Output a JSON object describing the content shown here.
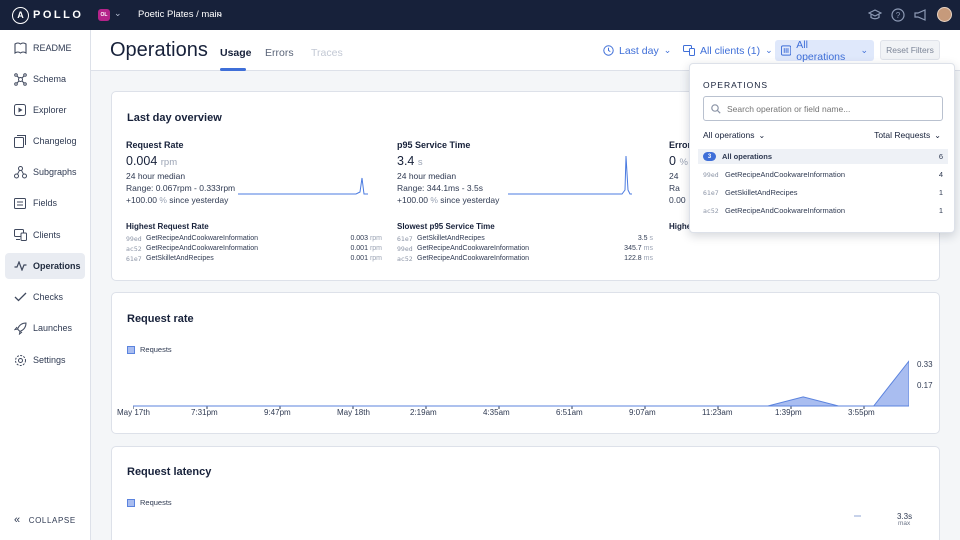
{
  "topbar": {
    "logo_text": "POLLO",
    "logo_letter": "A",
    "org_initials": "OL",
    "graph_name": "Poetic Plates / main",
    "icons": [
      "graduation-icon",
      "help-icon",
      "megaphone-icon",
      "user-avatar"
    ]
  },
  "sidebar": {
    "items": [
      {
        "label": "README",
        "icon": "book-icon"
      },
      {
        "label": "Schema",
        "icon": "schema-icon"
      },
      {
        "label": "Explorer",
        "icon": "play-icon"
      },
      {
        "label": "Changelog",
        "icon": "changelog-icon"
      },
      {
        "label": "Subgraphs",
        "icon": "subgraphs-icon"
      },
      {
        "label": "Fields",
        "icon": "fields-icon"
      },
      {
        "label": "Clients",
        "icon": "clients-icon"
      },
      {
        "label": "Operations",
        "icon": "pulse-icon",
        "active": true
      },
      {
        "label": "Checks",
        "icon": "check-icon"
      },
      {
        "label": "Launches",
        "icon": "rocket-icon"
      },
      {
        "label": "Settings",
        "icon": "gear-icon"
      }
    ],
    "collapse_label": "COLLAPSE"
  },
  "header": {
    "title": "Operations",
    "tabs": [
      {
        "label": "Usage",
        "active": true
      },
      {
        "label": "Errors"
      },
      {
        "label": "Traces",
        "disabled": true
      }
    ],
    "time_filter": "Last day",
    "clients_filter": "All clients (1)",
    "operations_filter": "All operations",
    "reset_label": "Reset Filters"
  },
  "overview": {
    "title": "Last day overview",
    "metrics": [
      {
        "name": "Request Rate",
        "value": "0.004",
        "unit": "rpm",
        "median_label": "24 hour median",
        "range": "Range: 0.067rpm - 0.333rpm",
        "change_value": "+100.00",
        "change_unit": "%",
        "change_suffix": "since yesterday"
      },
      {
        "name": "p95 Service Time",
        "value": "3.4",
        "unit": "s",
        "median_label": "24 hour median",
        "range": "Range: 344.1ms - 3.5s",
        "change_value": "+100.00",
        "change_unit": "%",
        "change_suffix": "since yesterday"
      },
      {
        "name": "Error",
        "value": "0",
        "unit": "%",
        "median_label": "24",
        "range": "Ra",
        "change_value": "0.00",
        "change_unit": "",
        "change_suffix": ""
      }
    ],
    "lists": [
      {
        "title": "Highest Request Rate",
        "rows": [
          {
            "hash": "99ed",
            "name": "GetRecipeAndCookwareInformation",
            "value": "0.003",
            "unit": "rpm"
          },
          {
            "hash": "ac52",
            "name": "GetRecipeAndCookwareInformation",
            "value": "0.001",
            "unit": "rpm"
          },
          {
            "hash": "61e7",
            "name": "GetSkilletAndRecipes",
            "value": "0.001",
            "unit": "rpm"
          }
        ]
      },
      {
        "title": "Slowest p95 Service Time",
        "rows": [
          {
            "hash": "61e7",
            "name": "GetSkilletAndRecipes",
            "value": "3.5",
            "unit": "s"
          },
          {
            "hash": "99ed",
            "name": "GetRecipeAndCookwareInformation",
            "value": "345.7",
            "unit": "ms"
          },
          {
            "hash": "ac52",
            "name": "GetRecipeAndCookwareInformation",
            "value": "122.8",
            "unit": "ms"
          }
        ]
      },
      {
        "title": "Highe",
        "rows": []
      }
    ]
  },
  "dropdown": {
    "header": "OPERATIONS",
    "search_placeholder": "Search operation or field name...",
    "filter_left": "All operations",
    "filter_right": "Total Requests",
    "rows": [
      {
        "badge": "3",
        "hash": "",
        "name": "All operations",
        "count": "6",
        "selected": true
      },
      {
        "badge": "",
        "hash": "99ed",
        "name": "GetRecipeAndCookwareInformation",
        "count": "4"
      },
      {
        "badge": "",
        "hash": "61e7",
        "name": "GetSkilletAndRecipes",
        "count": "1"
      },
      {
        "badge": "",
        "hash": "ac52",
        "name": "GetRecipeAndCookwareInformation",
        "count": "1"
      }
    ]
  },
  "request_rate": {
    "title": "Request rate",
    "legend": "Requests",
    "x_labels": [
      "May 17th",
      "7:31pm",
      "9:47pm",
      "May 18th",
      "2:19am",
      "4:35am",
      "6:51am",
      "9:07am",
      "11:23am",
      "1:39pm",
      "3:55pm"
    ],
    "y_labels": [
      "0.33",
      "0.17"
    ]
  },
  "request_latency": {
    "title": "Request latency",
    "legend": "Requests",
    "value_label": "3.3s",
    "value_sub": "max"
  },
  "chart_data": [
    {
      "type": "area",
      "title": "Request rate",
      "series": [
        {
          "name": "Requests",
          "values": [
            0,
            0,
            0,
            0,
            0,
            0,
            0,
            0,
            0,
            0,
            0,
            0,
            0,
            0,
            0,
            0,
            0,
            0,
            0,
            0.067,
            0,
            0,
            0.333
          ]
        }
      ],
      "x_tick_labels": [
        "May 17th",
        "7:31pm",
        "9:47pm",
        "May 18th",
        "2:19am",
        "4:35am",
        "6:51am",
        "9:07am",
        "11:23am",
        "1:39pm",
        "3:55pm"
      ],
      "y_tick_labels": [
        "0.33",
        "0.17"
      ],
      "ylim": [
        0,
        0.333
      ],
      "legend": "top-left"
    },
    {
      "type": "line",
      "title": "Request latency",
      "series": [
        {
          "name": "Requests",
          "values": []
        }
      ],
      "annotations": [
        "3.3s",
        "max"
      ],
      "legend": "top-left"
    }
  ],
  "colors": {
    "topbar_bg": "#17213a",
    "accent": "#3f6fd8",
    "spark": "#4b7be0",
    "area_fill": "#a9bdf0",
    "org_badge": "#b5238a"
  }
}
